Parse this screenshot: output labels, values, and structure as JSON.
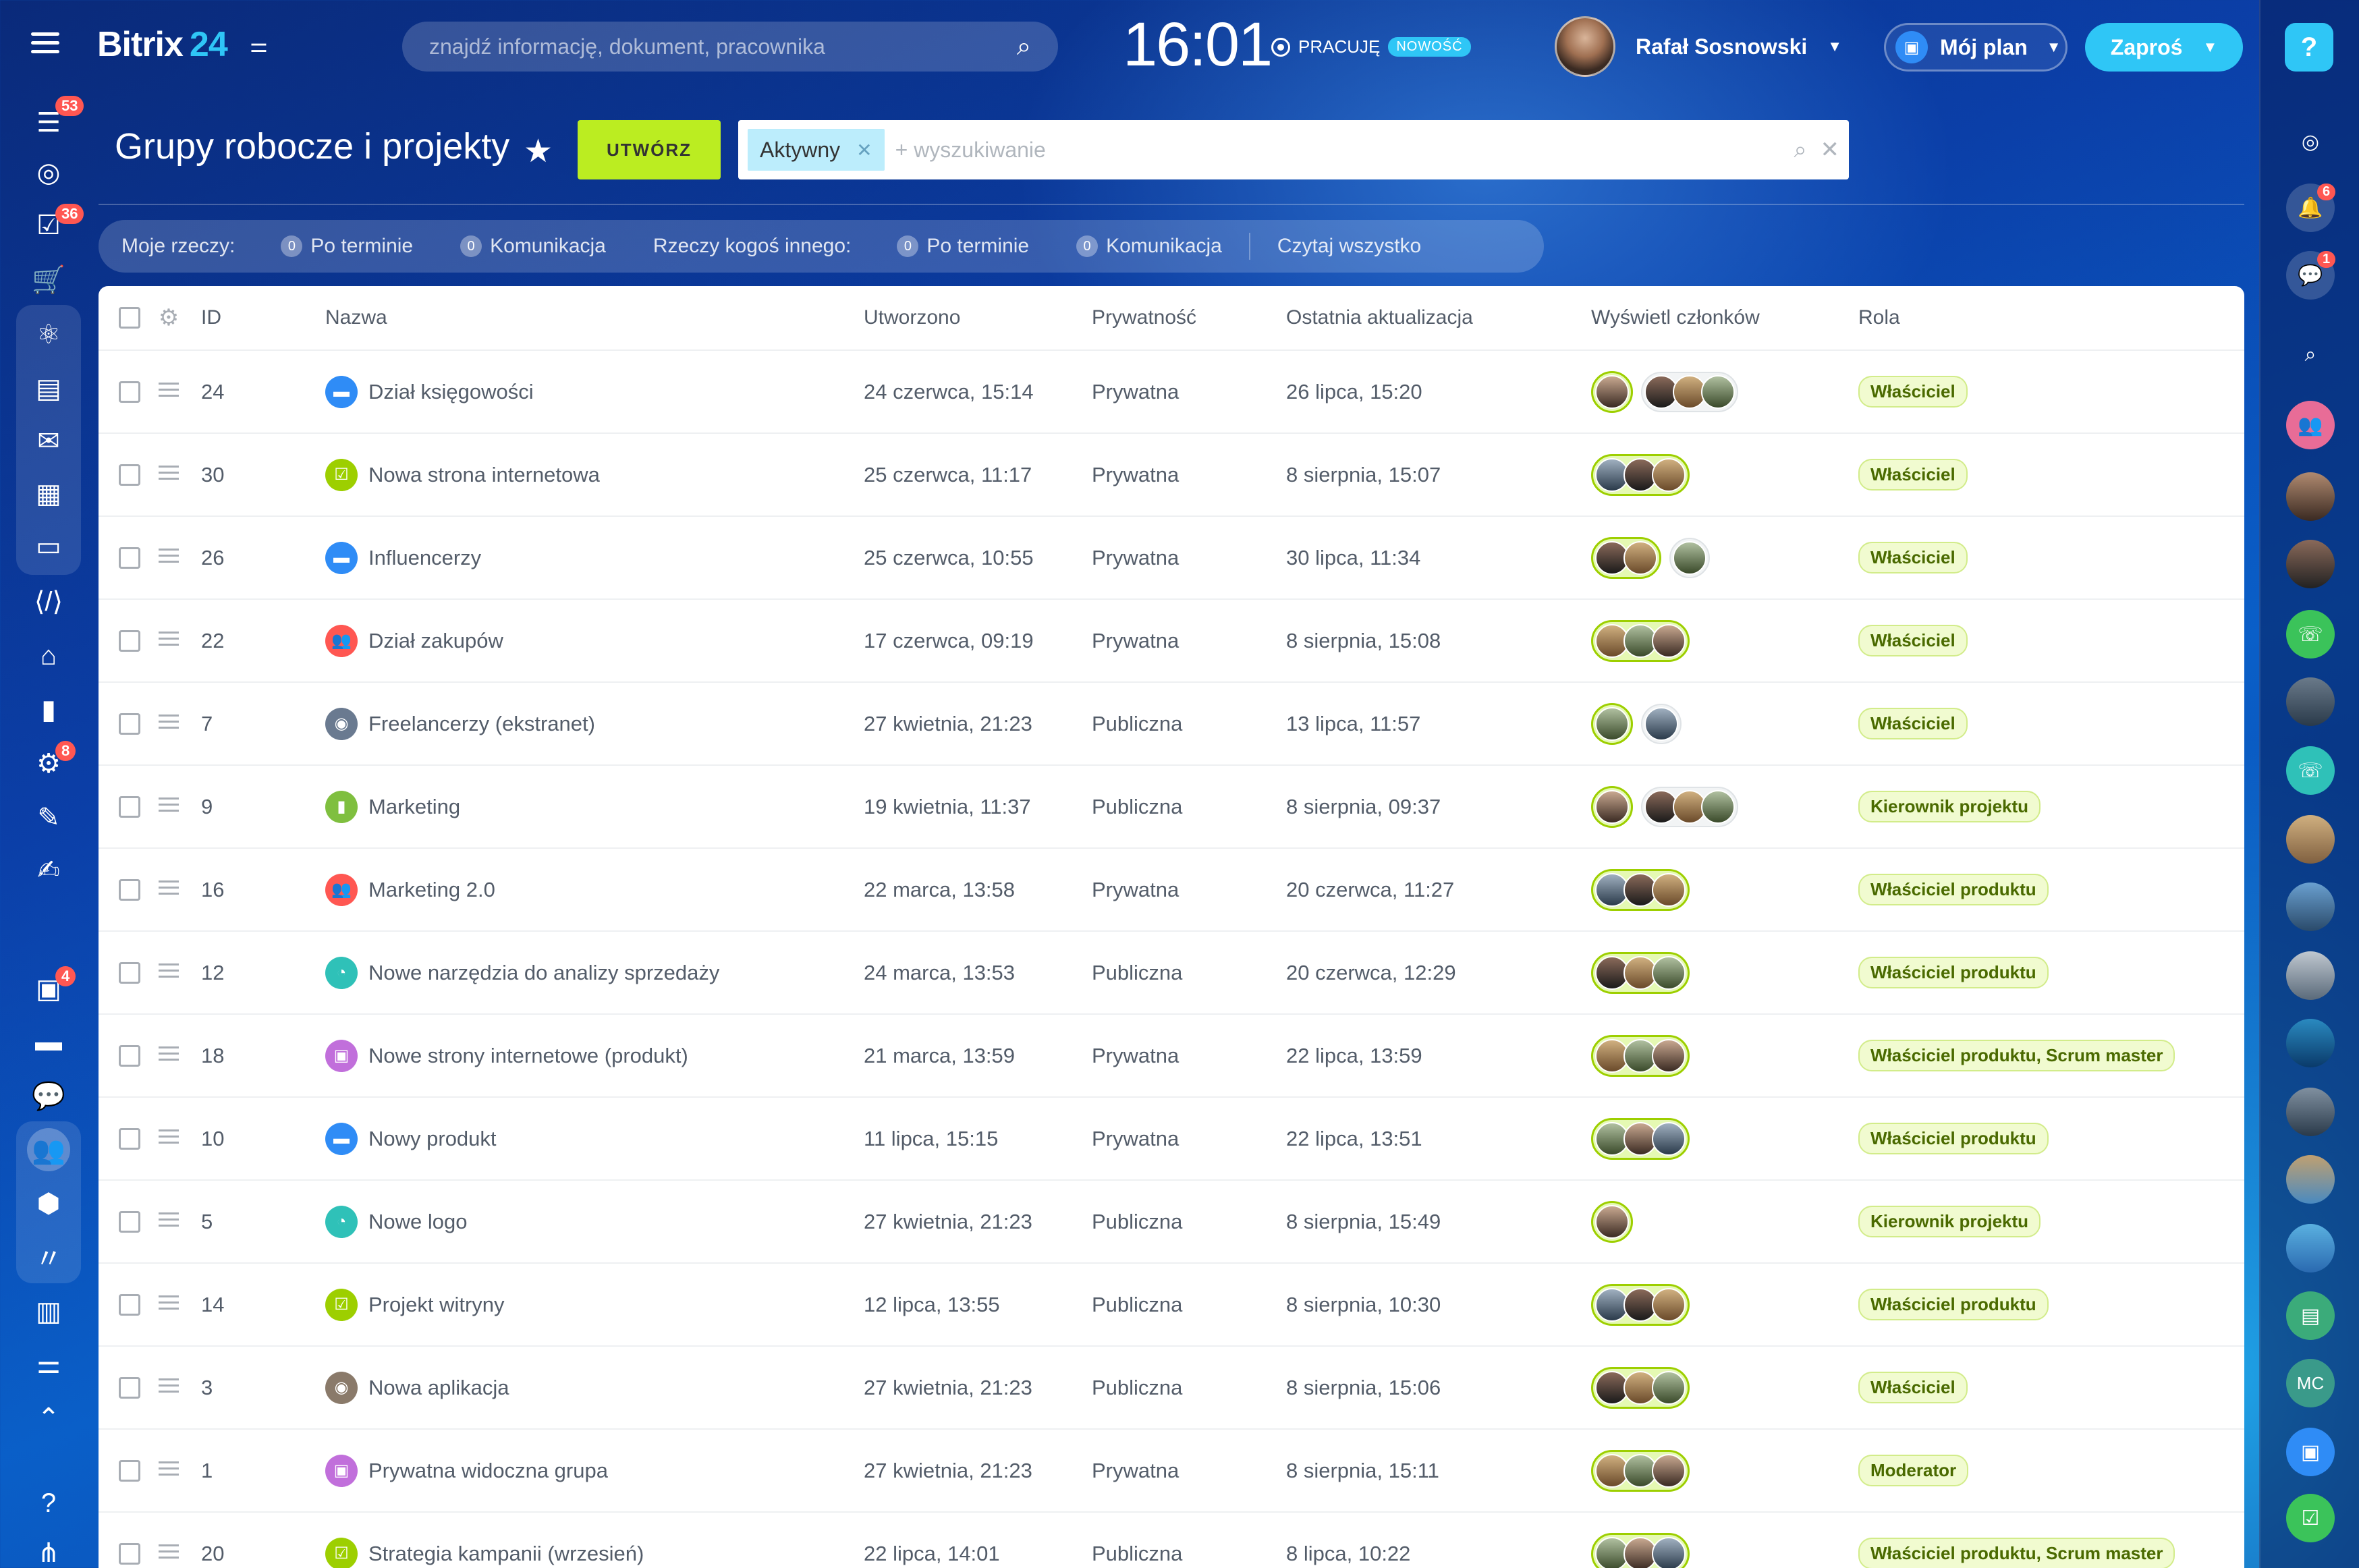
{
  "header": {
    "logo_text": "Bitrix",
    "logo_num": "24",
    "search_placeholder": "znajdź informację, dokument, pracownika",
    "clock": "16:01",
    "work_status": "PRACUJĘ",
    "new_badge": "NOWOŚĆ",
    "user_name": "Rafał Sosnowski",
    "plan_label": "Mój plan",
    "invite_label": "Zaproś",
    "help_label": "?"
  },
  "left_sidebar": {
    "badges": {
      "feed": "53",
      "tasks": "36",
      "robots": "8",
      "contacts": "4"
    }
  },
  "right_sidebar": {
    "badges": {
      "notifications": "6",
      "chat": "1"
    },
    "mc_label": "MC"
  },
  "page": {
    "title": "Grupy robocze i projekty",
    "create_label": "UTWÓRZ",
    "filter_tag": "Aktywny",
    "filter_placeholder": "+ wyszukiwanie"
  },
  "counters": {
    "mine_label": "Moje rzeczy:",
    "mine_overdue_count": "0",
    "mine_overdue": "Po terminie",
    "mine_comm_count": "0",
    "mine_comm": "Komunikacja",
    "others_label": "Rzeczy kogoś innego:",
    "others_overdue_count": "0",
    "others_overdue": "Po terminie",
    "others_comm_count": "0",
    "others_comm": "Komunikacja",
    "read_all": "Czytaj wszystko"
  },
  "table": {
    "columns": [
      "ID",
      "Nazwa",
      "Utworzono",
      "Prywatność",
      "Ostatnia aktualizacja",
      "Wyświetl członków",
      "Rola"
    ],
    "rows": [
      {
        "id": "24",
        "name": "Dział księgowości",
        "created": "24 czerwca, 15:14",
        "privacy": "Prywatna",
        "updated": "26 lipca, 15:20",
        "role": "Właściciel",
        "icon": "folder-icon",
        "icon_color": "#2f8cf6",
        "owner_count": 1,
        "other_count": 3
      },
      {
        "id": "30",
        "name": "Nowa strona internetowa",
        "created": "25 czerwca, 11:17",
        "privacy": "Prywatna",
        "updated": "8 sierpnia, 15:07",
        "role": "Właściciel",
        "icon": "project-icon",
        "icon_color": "#9dcf00",
        "owner_count": 3,
        "other_count": 0
      },
      {
        "id": "26",
        "name": "Influencerzy",
        "created": "25 czerwca, 10:55",
        "privacy": "Prywatna",
        "updated": "30 lipca, 11:34",
        "role": "Właściciel",
        "icon": "folder-icon",
        "icon_color": "#2f8cf6",
        "owner_count": 2,
        "other_count": 1
      },
      {
        "id": "22",
        "name": "Dział zakupów",
        "created": "17 czerwca, 09:19",
        "privacy": "Prywatna",
        "updated": "8 sierpnia, 15:08",
        "role": "Właściciel",
        "icon": "people-icon",
        "icon_color": "#ff5752",
        "owner_count": 3,
        "other_count": 0
      },
      {
        "id": "7",
        "name": "Freelancerzy (ekstranet)",
        "created": "27 kwietnia, 21:23",
        "privacy": "Publiczna",
        "updated": "13 lipca, 11:57",
        "role": "Właściciel",
        "icon": "photo-icon",
        "icon_color": "#6a7a90",
        "owner_count": 1,
        "other_count": 1
      },
      {
        "id": "9",
        "name": "Marketing",
        "created": "19 kwietnia, 11:37",
        "privacy": "Publiczna",
        "updated": "8 sierpnia, 09:37",
        "role": "Kierownik projektu",
        "icon": "chart-icon",
        "icon_color": "#7fbf3f",
        "owner_count": 1,
        "other_count": 3
      },
      {
        "id": "16",
        "name": "Marketing 2.0",
        "created": "22 marca, 13:58",
        "privacy": "Prywatna",
        "updated": "20 czerwca, 11:27",
        "role": "Właściciel produktu",
        "icon": "people-icon",
        "icon_color": "#ff5752",
        "owner_count": 3,
        "other_count": 0
      },
      {
        "id": "12",
        "name": "Nowe narzędzia do analizy sprzedaży",
        "created": "24 marca, 13:53",
        "privacy": "Publiczna",
        "updated": "20 czerwca, 12:29",
        "role": "Właściciel produktu",
        "icon": "pie-icon",
        "icon_color": "#2fc1b8",
        "owner_count": 3,
        "other_count": 0
      },
      {
        "id": "18",
        "name": "Nowe strony internetowe (produkt)",
        "created": "21 marca, 13:59",
        "privacy": "Prywatna",
        "updated": "22 lipca, 13:59",
        "role": "Właściciel produktu, Scrum master",
        "icon": "briefcase-icon",
        "icon_color": "#c16fdb",
        "owner_count": 3,
        "other_count": 0
      },
      {
        "id": "10",
        "name": "Nowy produkt",
        "created": "11 lipca, 15:15",
        "privacy": "Prywatna",
        "updated": "22 lipca, 13:51",
        "role": "Właściciel produktu",
        "icon": "folder-icon",
        "icon_color": "#2f8cf6",
        "owner_count": 3,
        "other_count": 0
      },
      {
        "id": "5",
        "name": "Nowe logo",
        "created": "27 kwietnia, 21:23",
        "privacy": "Publiczna",
        "updated": "8 sierpnia, 15:49",
        "role": "Kierownik projektu",
        "icon": "pie-icon",
        "icon_color": "#2fc1b8",
        "owner_count": 1,
        "other_count": 0
      },
      {
        "id": "14",
        "name": "Projekt witryny",
        "created": "12 lipca, 13:55",
        "privacy": "Publiczna",
        "updated": "8 sierpnia, 10:30",
        "role": "Właściciel produktu",
        "icon": "project-icon",
        "icon_color": "#9dcf00",
        "owner_count": 3,
        "other_count": 0
      },
      {
        "id": "3",
        "name": "Nowa aplikacja",
        "created": "27 kwietnia, 21:23",
        "privacy": "Publiczna",
        "updated": "8 sierpnia, 15:06",
        "role": "Właściciel",
        "icon": "photo-icon",
        "icon_color": "#8a7a6a",
        "owner_count": 3,
        "other_count": 0
      },
      {
        "id": "1",
        "name": "Prywatna widoczna grupa",
        "created": "27 kwietnia, 21:23",
        "privacy": "Prywatna",
        "updated": "8 sierpnia, 15:11",
        "role": "Moderator",
        "icon": "briefcase-icon",
        "icon_color": "#c16fdb",
        "owner_count": 3,
        "other_count": 0
      },
      {
        "id": "20",
        "name": "Strategia kampanii (wrzesień)",
        "created": "22 lipca, 14:01",
        "privacy": "Publiczna",
        "updated": "8 lipca, 10:22",
        "role": "Właściciel produktu, Scrum master",
        "icon": "project-icon",
        "icon_color": "#9dcf00",
        "owner_count": 3,
        "other_count": 0
      }
    ]
  }
}
